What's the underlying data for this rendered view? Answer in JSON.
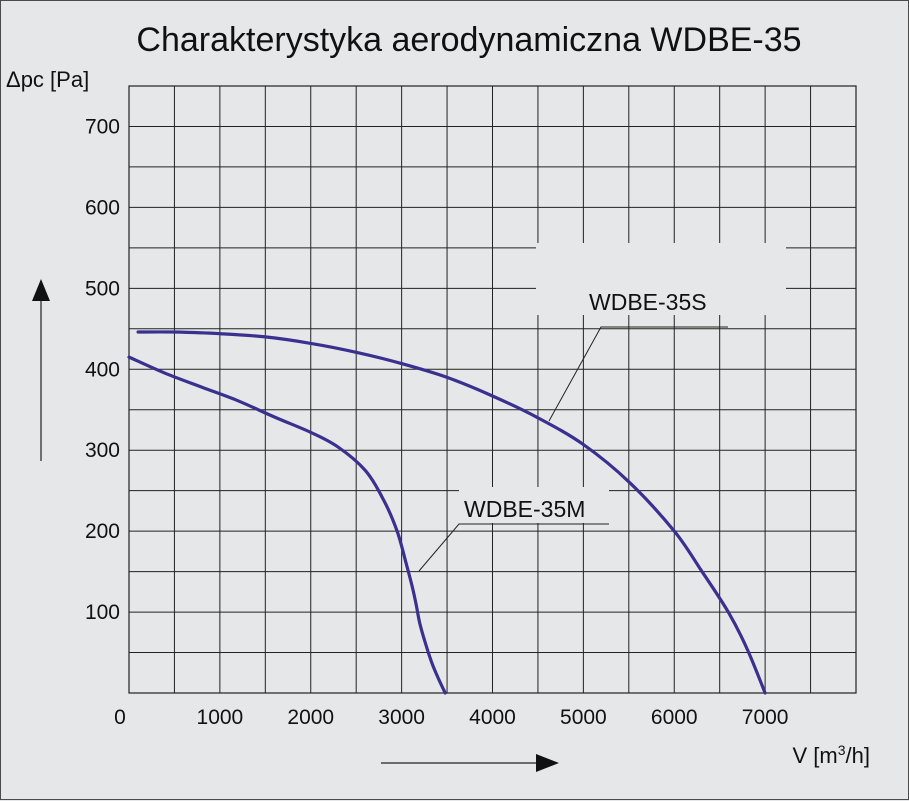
{
  "chart_data": {
    "type": "line",
    "title": "Charakterystyka aerodynamiczna WDBE-35",
    "ylabel": "Δpc [Pa]",
    "xlabel_prefix": "V [m",
    "xlabel_sup": "3",
    "xlabel_suffix": "/h]",
    "xlim": [
      0,
      8000
    ],
    "ylim": [
      0,
      750
    ],
    "x_ticks": [
      0,
      1000,
      2000,
      3000,
      4000,
      5000,
      6000,
      7000
    ],
    "y_ticks": [
      100,
      200,
      300,
      400,
      500,
      600,
      700
    ],
    "grid": true,
    "series": [
      {
        "name": "WDBE-35S",
        "color": "#3a3090",
        "x": [
          100,
          500,
          1000,
          1500,
          2000,
          2500,
          3000,
          3500,
          4000,
          4500,
          5000,
          5500,
          6000,
          6300,
          6600,
          6800,
          7000
        ],
        "y": [
          446,
          446,
          444,
          440,
          432,
          421,
          407,
          390,
          367,
          340,
          307,
          261,
          200,
          151,
          99,
          55,
          0
        ]
      },
      {
        "name": "WDBE-35M",
        "color": "#3a3090",
        "x": [
          0,
          400,
          800,
          1200,
          1600,
          2000,
          2300,
          2600,
          2800,
          2950,
          3050,
          3120,
          3160,
          3200,
          3260,
          3330,
          3400,
          3480
        ],
        "y": [
          415,
          395,
          378,
          361,
          341,
          322,
          304,
          275,
          239,
          200,
          160,
          130,
          109,
          86,
          62,
          38,
          19,
          0
        ]
      }
    ]
  }
}
